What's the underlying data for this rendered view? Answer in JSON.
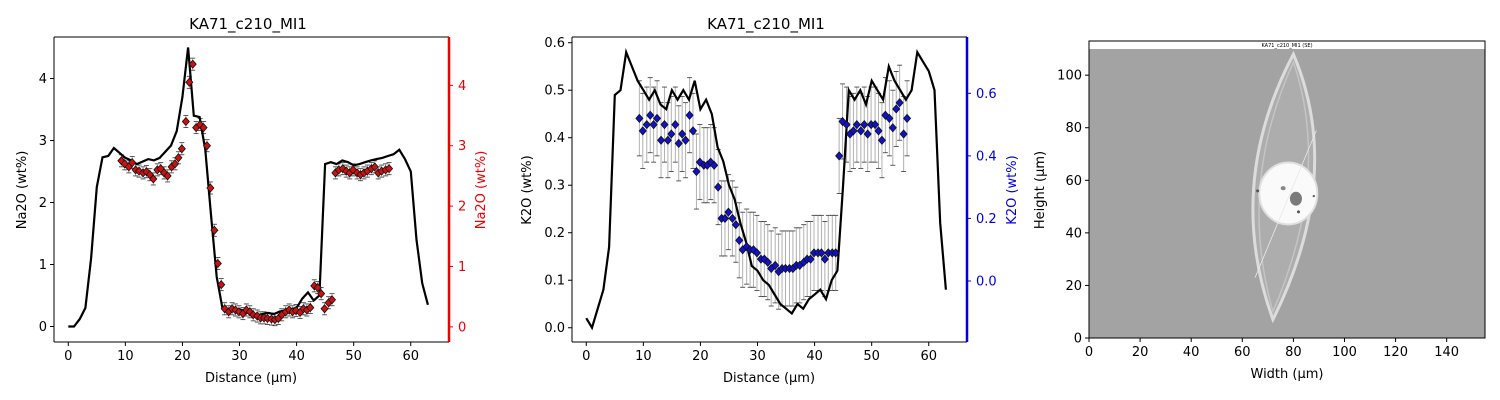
{
  "colors": {
    "na2o_point": "#cc1111",
    "na2o_axis": "#ee0000",
    "k2o_point": "#1111cc",
    "k2o_axis": "#0000dd",
    "line": "#000000",
    "errorbar": "#b0b0b0"
  },
  "chart_data": [
    {
      "type": "line",
      "title": "KA71_c210_MI1",
      "xlabel": "Distance (µm)",
      "ylabel": "Na2O (wt%)",
      "ylabel_right": "Na2O (wt%)",
      "xlim": [
        -2.5,
        66.7
      ],
      "ylim": [
        -0.25,
        4.67
      ],
      "ylim_right": [
        -0.25,
        4.8
      ],
      "xticks": [
        "0",
        "10",
        "20",
        "30",
        "40",
        "50",
        "60"
      ],
      "yticks": [
        "0",
        "1",
        "2",
        "3",
        "4"
      ],
      "yticks_right": [
        "0",
        "1",
        "2",
        "3",
        "4"
      ],
      "grid": false,
      "series": [
        {
          "role": "profile-line",
          "x": [
            0,
            1,
            2,
            3,
            4,
            5,
            6,
            7,
            8,
            9,
            10,
            11,
            12,
            13,
            14,
            15,
            16,
            17,
            18,
            19,
            20,
            21,
            22,
            23,
            24,
            25,
            26,
            27,
            28,
            29,
            30,
            31,
            32,
            33,
            34,
            35,
            36,
            37,
            38,
            39,
            40,
            41,
            42,
            43,
            44,
            45,
            46,
            47,
            48,
            49,
            50,
            51,
            52,
            53,
            54,
            55,
            56,
            57,
            58,
            59,
            60,
            61,
            62,
            63
          ],
          "y": [
            0,
            0,
            0.12,
            0.3,
            1.1,
            2.25,
            2.73,
            2.75,
            2.88,
            2.8,
            2.72,
            2.68,
            2.62,
            2.66,
            2.7,
            2.68,
            2.72,
            2.82,
            2.92,
            3.15,
            3.7,
            4.5,
            3.4,
            3.38,
            2.85,
            1.8,
            0.8,
            0.3,
            0.22,
            0.25,
            0.28,
            0.24,
            0.2,
            0.18,
            0.2,
            0.22,
            0.2,
            0.24,
            0.26,
            0.28,
            0.3,
            0.45,
            0.55,
            0.42,
            0.5,
            2.62,
            2.65,
            2.62,
            2.68,
            2.65,
            2.6,
            2.62,
            2.65,
            2.68,
            2.7,
            2.72,
            2.75,
            2.78,
            2.85,
            2.7,
            2.5,
            1.4,
            0.7,
            0.35
          ]
        },
        {
          "role": "points-with-errorbars",
          "axis": "right",
          "x": [
            9.3,
            9.9,
            10.6,
            11.2,
            11.8,
            12.4,
            13.1,
            13.7,
            14.3,
            14.9,
            15.6,
            16.2,
            16.8,
            17.4,
            18.1,
            18.7,
            19.3,
            19.9,
            20.6,
            21.2,
            21.8,
            22.4,
            23.1,
            23.7,
            24.3,
            24.9,
            25.6,
            26.2,
            26.8,
            27.4,
            28.1,
            28.7,
            29.3,
            29.9,
            30.6,
            31.2,
            31.8,
            32.4,
            33.1,
            33.7,
            34.3,
            34.9,
            35.6,
            36.2,
            36.8,
            37.4,
            38.1,
            38.7,
            39.3,
            39.9,
            40.6,
            41.2,
            41.8,
            42.4,
            43.1,
            43.7,
            44.3,
            44.9,
            45.6,
            46.2,
            46.8,
            47.4,
            48.1,
            48.7,
            49.3,
            49.9,
            50.6,
            51.2,
            51.8,
            52.4,
            53.1,
            53.7,
            54.3,
            54.9,
            55.6,
            56.2
          ],
          "y": [
            2.75,
            2.7,
            2.65,
            2.72,
            2.6,
            2.58,
            2.55,
            2.57,
            2.52,
            2.45,
            2.6,
            2.62,
            2.55,
            2.5,
            2.65,
            2.7,
            2.8,
            2.95,
            3.4,
            4.05,
            4.35,
            3.3,
            3.35,
            3.3,
            3.0,
            2.3,
            1.6,
            1.05,
            0.7,
            0.3,
            0.25,
            0.3,
            0.28,
            0.25,
            0.22,
            0.28,
            0.25,
            0.2,
            0.18,
            0.15,
            0.15,
            0.14,
            0.13,
            0.12,
            0.14,
            0.2,
            0.25,
            0.28,
            0.25,
            0.27,
            0.24,
            0.3,
            0.28,
            0.32,
            0.68,
            0.65,
            0.55,
            0.3,
            0.4,
            0.45,
            2.55,
            2.6,
            2.62,
            2.58,
            2.55,
            2.6,
            2.55,
            2.52,
            2.55,
            2.58,
            2.62,
            2.65,
            2.55,
            2.58,
            2.6,
            2.62
          ],
          "error": 0.1
        }
      ]
    },
    {
      "type": "line",
      "title": "KA71_c210_MI1",
      "xlabel": "Distance (µm)",
      "ylabel": "K2O (wt%)",
      "ylabel_right": "K2O (wt%)",
      "xlim": [
        -2.5,
        66.7
      ],
      "ylim": [
        -0.03,
        0.612
      ],
      "ylim_right": [
        -0.195,
        0.78
      ],
      "xticks": [
        "0",
        "10",
        "20",
        "30",
        "40",
        "50",
        "60"
      ],
      "yticks": [
        "0.0",
        "0.1",
        "0.2",
        "0.3",
        "0.4",
        "0.5",
        "0.6"
      ],
      "yticks_right": [
        "0.0",
        "0.2",
        "0.4",
        "0.6"
      ],
      "grid": false,
      "series": [
        {
          "role": "profile-line",
          "x": [
            0,
            1,
            2,
            3,
            4,
            5,
            6,
            7,
            8,
            9,
            10,
            11,
            12,
            13,
            14,
            15,
            16,
            17,
            18,
            19,
            20,
            21,
            22,
            23,
            24,
            25,
            26,
            27,
            28,
            29,
            30,
            31,
            32,
            33,
            34,
            35,
            36,
            37,
            38,
            39,
            40,
            41,
            42,
            43,
            44,
            45,
            46,
            47,
            48,
            49,
            50,
            51,
            52,
            53,
            54,
            55,
            56,
            57,
            58,
            59,
            60,
            61,
            62,
            63
          ],
          "y": [
            0.02,
            0,
            0.04,
            0.08,
            0.17,
            0.49,
            0.5,
            0.58,
            0.55,
            0.52,
            0.5,
            0.48,
            0.5,
            0.47,
            0.46,
            0.5,
            0.48,
            0.5,
            0.48,
            0.52,
            0.46,
            0.48,
            0.45,
            0.38,
            0.35,
            0.3,
            0.27,
            0.22,
            0.18,
            0.13,
            0.12,
            0.1,
            0.09,
            0.07,
            0.05,
            0.04,
            0.03,
            0.05,
            0.04,
            0.06,
            0.07,
            0.08,
            0.06,
            0.1,
            0.12,
            0.3,
            0.5,
            0.48,
            0.5,
            0.47,
            0.52,
            0.5,
            0.48,
            0.55,
            0.52,
            0.5,
            0.48,
            0.5,
            0.58,
            0.56,
            0.54,
            0.5,
            0.22,
            0.08
          ]
        },
        {
          "role": "points-with-errorbars",
          "axis": "right",
          "x": [
            9.3,
            9.9,
            10.6,
            11.2,
            11.8,
            12.4,
            13.1,
            13.7,
            14.3,
            14.9,
            15.6,
            16.2,
            16.8,
            17.4,
            18.1,
            18.7,
            19.3,
            19.9,
            20.6,
            21.2,
            21.8,
            22.4,
            23.1,
            23.7,
            24.3,
            24.9,
            25.6,
            26.2,
            26.8,
            27.4,
            28.1,
            28.7,
            29.3,
            29.9,
            30.6,
            31.2,
            31.8,
            32.4,
            33.1,
            33.7,
            34.3,
            34.9,
            35.6,
            36.2,
            36.8,
            37.4,
            38.1,
            38.7,
            39.3,
            39.9,
            40.6,
            41.2,
            41.8,
            42.4,
            43.1,
            43.7,
            44.3,
            44.9,
            45.6,
            46.2,
            46.8,
            47.4,
            48.1,
            48.7,
            49.3,
            49.9,
            50.6,
            51.2,
            51.8,
            52.4,
            53.1,
            53.7,
            54.3,
            54.9,
            55.6,
            56.2
          ],
          "y": [
            0.52,
            0.48,
            0.5,
            0.53,
            0.5,
            0.52,
            0.45,
            0.5,
            0.45,
            0.47,
            0.5,
            0.44,
            0.47,
            0.45,
            0.53,
            0.48,
            0.35,
            0.38,
            0.37,
            0.37,
            0.38,
            0.37,
            0.3,
            0.2,
            0.2,
            0.22,
            0.2,
            0.18,
            0.13,
            0.1,
            0.11,
            0.1,
            0.1,
            0.09,
            0.07,
            0.07,
            0.06,
            0.04,
            0.05,
            0.03,
            0.04,
            0.04,
            0.04,
            0.04,
            0.05,
            0.05,
            0.06,
            0.07,
            0.07,
            0.09,
            0.09,
            0.09,
            0.07,
            0.09,
            0.09,
            0.09,
            0.4,
            0.51,
            0.5,
            0.47,
            0.48,
            0.5,
            0.48,
            0.5,
            0.47,
            0.5,
            0.5,
            0.48,
            0.45,
            0.53,
            0.52,
            0.49,
            0.55,
            0.57,
            0.47,
            0.52
          ],
          "error": 0.12
        }
      ]
    },
    {
      "type": "image",
      "xlabel": "Width (µm)",
      "ylabel": "Height (µm)",
      "image_caption": "KA71_c210_MI1 (SE)",
      "xlim": [
        0,
        155
      ],
      "ylim": [
        0,
        113
      ],
      "xticks": [
        "0",
        "20",
        "40",
        "60",
        "80",
        "100",
        "120",
        "140"
      ],
      "yticks": [
        "0",
        "20",
        "40",
        "60",
        "80",
        "100"
      ]
    }
  ]
}
